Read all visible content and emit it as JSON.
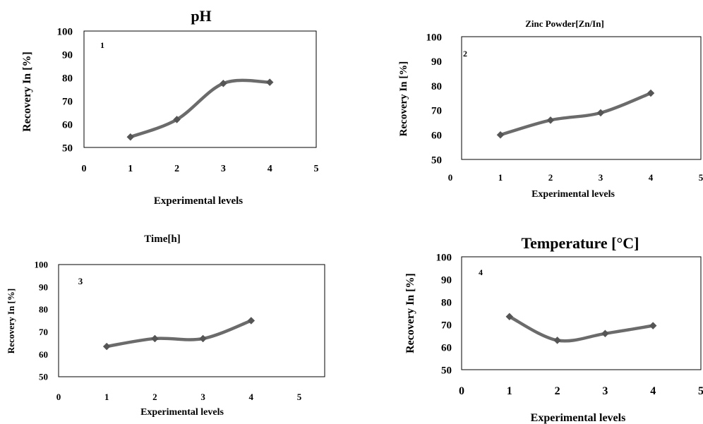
{
  "chart_data": [
    {
      "type": "line",
      "title": "pH",
      "panel_label": "1",
      "xlabel": "Experimental levels",
      "ylabel": "Recovery In [%]",
      "xlim": [
        0,
        5
      ],
      "ylim": [
        50,
        100
      ],
      "x_ticks": [
        "0",
        "1",
        "2",
        "3",
        "4",
        "5"
      ],
      "y_ticks": [
        "50",
        "60",
        "70",
        "80",
        "90",
        "100"
      ],
      "series": [
        {
          "x": [
            1,
            2,
            3,
            4
          ],
          "values": [
            54.5,
            62,
            77.5,
            78
          ]
        }
      ],
      "grid": false,
      "legend": "none"
    },
    {
      "type": "line",
      "title": "Zinc Powder[Zn/In]",
      "panel_label": "2",
      "xlabel": "Experimental levels",
      "ylabel": "Recovery In [%]",
      "xlim": [
        0,
        5
      ],
      "ylim": [
        50,
        100
      ],
      "x_ticks": [
        "0",
        "1",
        "2",
        "3",
        "4",
        "5"
      ],
      "y_ticks": [
        "50",
        "60",
        "70",
        "80",
        "90",
        "100"
      ],
      "series": [
        {
          "x": [
            1,
            2,
            3,
            4
          ],
          "values": [
            60,
            66,
            69,
            77
          ]
        }
      ],
      "grid": false,
      "legend": "none"
    },
    {
      "type": "line",
      "title": "Time[h]",
      "panel_label": "3",
      "xlabel": "Experimental levels",
      "ylabel": "Recovery In [%]",
      "xlim": [
        0,
        5
      ],
      "ylim": [
        50,
        100
      ],
      "x_ticks": [
        "0",
        "1",
        "2",
        "3",
        "4",
        "5"
      ],
      "y_ticks": [
        "50",
        "60",
        "70",
        "80",
        "90",
        "100"
      ],
      "series": [
        {
          "x": [
            1,
            2,
            3,
            4
          ],
          "values": [
            63.5,
            67,
            67,
            75
          ]
        }
      ],
      "grid": false,
      "legend": "none"
    },
    {
      "type": "line",
      "title": "Temperature [°C]",
      "panel_label": "4",
      "xlabel": "Experimental levels",
      "ylabel": "Recovery In [%]",
      "xlim": [
        0,
        5
      ],
      "ylim": [
        50,
        100
      ],
      "x_ticks": [
        "0",
        "1",
        "2",
        "3",
        "4",
        "5"
      ],
      "y_ticks": [
        "50",
        "60",
        "70",
        "80",
        "90",
        "100"
      ],
      "series": [
        {
          "x": [
            1,
            2,
            3,
            4
          ],
          "values": [
            73.5,
            63,
            66,
            69.5
          ]
        }
      ],
      "grid": false,
      "legend": "none"
    }
  ],
  "colors": {
    "line": "#6b6b6b",
    "marker": "#555555",
    "frame": "#000000"
  }
}
